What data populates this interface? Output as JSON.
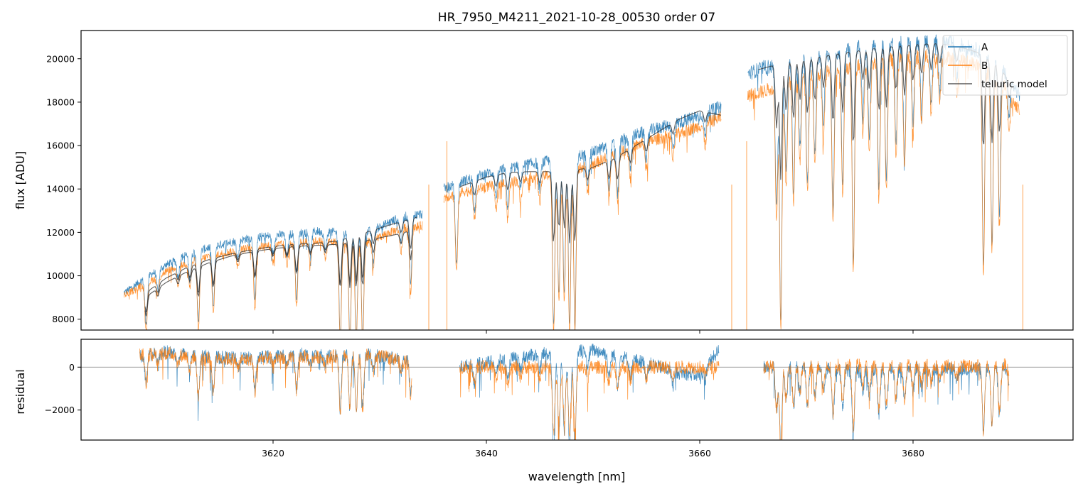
{
  "chart_data": {
    "type": "line",
    "title": "HR_7950_M4211_2021-10-28_00530  order 07",
    "xlabel": "wavelength [nm]",
    "xlim": [
      3602,
      3695
    ],
    "xticks": [
      3620,
      3640,
      3660,
      3680
    ],
    "colors": {
      "A": "#1f77b4",
      "B": "#ff7f0e",
      "model": "#333333",
      "zero": "#808080"
    },
    "legend": {
      "position": "top-right",
      "entries": [
        "A",
        "B",
        "telluric model"
      ]
    },
    "panels": {
      "flux": {
        "ylabel": "flux [ADU]",
        "ylim": [
          7500,
          21300
        ],
        "yticks": [
          8000,
          10000,
          12000,
          14000,
          16000,
          18000,
          20000
        ],
        "series": [
          {
            "name": "A",
            "segments": [
              {
                "x": [
                  3606.0,
                  3608.0,
                  3610.0,
                  3612.0,
                  3614.0,
                  3616.0,
                  3618.0,
                  3620.0,
                  3622.0,
                  3624.0,
                  3626.0,
                  3628.0,
                  3630.0,
                  3632.0,
                  3634.0
                ],
                "y": [
                  9200,
                  9900,
                  10500,
                  11000,
                  11300,
                  11550,
                  11750,
                  11850,
                  11950,
                  12050,
                  12000,
                  11850,
                  12250,
                  12700,
                  12850
                ]
              },
              {
                "x": [
                  3636.0,
                  3638.0,
                  3640.0,
                  3642.0,
                  3644.0,
                  3646.0,
                  3648.0,
                  3650.0,
                  3652.0,
                  3654.0,
                  3656.0,
                  3658.0,
                  3660.0,
                  3662.0
                ],
                "y": [
                  14000,
                  14400,
                  14700,
                  14950,
                  15150,
                  15300,
                  15450,
                  15700,
                  16100,
                  16500,
                  16800,
                  17050,
                  17400,
                  17800
                ]
              },
              {
                "x": [
                  3664.5,
                  3666.0,
                  3668.0,
                  3670.0,
                  3672.0,
                  3674.0,
                  3676.0,
                  3678.0,
                  3680.0,
                  3682.0,
                  3684.0,
                  3686.0,
                  3688.0,
                  3690.0
                ],
                "y": [
                  19300,
                  19600,
                  19700,
                  20000,
                  20200,
                  20400,
                  20600,
                  20700,
                  20800,
                  20800,
                  20700,
                  20400,
                  19800,
                  18300
                ]
              }
            ]
          },
          {
            "name": "B",
            "segments": [
              {
                "x": [
                  3606.0,
                  3608.0,
                  3610.0,
                  3612.0,
                  3614.0,
                  3616.0,
                  3618.0,
                  3620.0,
                  3622.0,
                  3624.0,
                  3626.0,
                  3628.0,
                  3630.0,
                  3632.0,
                  3634.0
                ],
                "y": [
                  9100,
                  9600,
                  10200,
                  10600,
                  10900,
                  11100,
                  11300,
                  11400,
                  11500,
                  11600,
                  11550,
                  11400,
                  11800,
                  12200,
                  12300
                ]
              },
              {
                "x": [
                  3636.0,
                  3638.0,
                  3640.0,
                  3642.0,
                  3644.0,
                  3646.0,
                  3648.0,
                  3650.0,
                  3652.0,
                  3654.0,
                  3656.0,
                  3658.0,
                  3660.0,
                  3662.0
                ],
                "y": [
                  13600,
                  13900,
                  14100,
                  14300,
                  14500,
                  14650,
                  14850,
                  15150,
                  15600,
                  16000,
                  16300,
                  16550,
                  16900,
                  17300
                ]
              },
              {
                "x": [
                  3664.5,
                  3666.0,
                  3668.0,
                  3670.0,
                  3672.0,
                  3674.0,
                  3676.0,
                  3678.0,
                  3680.0,
                  3682.0,
                  3684.0,
                  3686.0,
                  3688.0,
                  3690.0
                ],
                "y": [
                  18300,
                  18500,
                  18900,
                  19200,
                  19400,
                  19600,
                  19800,
                  19950,
                  20100,
                  20100,
                  20000,
                  19700,
                  19100,
                  17600
                ]
              }
            ]
          },
          {
            "name": "telluric model",
            "segments": [
              {
                "x": [
                  3608.0,
                  3610.0,
                  3612.0,
                  3614.0,
                  3616.0,
                  3618.0,
                  3620.0,
                  3622.0,
                  3624.0,
                  3626.0,
                  3628.0,
                  3630.0,
                  3632.0,
                  3633.5
                ],
                "y": [
                  9200,
                  9900,
                  10400,
                  10750,
                  11000,
                  11200,
                  11350,
                  11450,
                  11500,
                  11600,
                  11900,
                  12200,
                  12500,
                  12700
                ]
              },
              {
                "x": [
                  3608.0,
                  3610.0,
                  3612.0,
                  3614.0,
                  3616.0,
                  3618.0,
                  3620.0,
                  3622.0,
                  3624.0,
                  3626.0,
                  3628.0,
                  3630.0,
                  3632.0,
                  3633.0
                ],
                "y": [
                  9000,
                  9700,
                  10200,
                  10600,
                  10900,
                  11100,
                  11250,
                  11350,
                  11400,
                  11450,
                  11550,
                  11750,
                  11950,
                  12100
                ]
              },
              {
                "x": [
                  3637.5,
                  3640.0,
                  3642.0,
                  3644.0,
                  3646.0,
                  3648.0,
                  3650.0,
                  3652.0,
                  3654.0,
                  3656.0,
                  3658.0,
                  3660.0,
                  3662.0
                ],
                "y": [
                  14100,
                  14550,
                  14750,
                  14800,
                  14800,
                  14850,
                  15000,
                  15400,
                  16000,
                  16600,
                  17200,
                  17600,
                  17400
                ]
              },
              {
                "x": [
                  3665.5,
                  3667.0,
                  3668.0,
                  3670.0,
                  3672.0,
                  3674.0,
                  3676.0,
                  3678.0,
                  3680.0,
                  3682.0,
                  3684.0,
                  3686.0,
                  3688.0,
                  3689.5
                ],
                "y": [
                  19500,
                  19700,
                  19800,
                  19950,
                  20150,
                  20300,
                  20450,
                  20550,
                  20650,
                  20700,
                  20600,
                  20300,
                  19700,
                  18600
                ]
              }
            ]
          }
        ],
        "absorption_lines": [
          {
            "x": 3608.1,
            "depth": 0.22
          },
          {
            "x": 3609.2,
            "depth": 0.09
          },
          {
            "x": 3611.1,
            "depth": 0.08
          },
          {
            "x": 3612.2,
            "depth": 0.11
          },
          {
            "x": 3613.0,
            "depth": 0.3
          },
          {
            "x": 3614.4,
            "depth": 0.25
          },
          {
            "x": 3616.7,
            "depth": 0.07
          },
          {
            "x": 3618.3,
            "depth": 0.25
          },
          {
            "x": 3620.0,
            "depth": 0.07
          },
          {
            "x": 3621.3,
            "depth": 0.09
          },
          {
            "x": 3622.2,
            "depth": 0.25
          },
          {
            "x": 3623.5,
            "depth": 0.08
          },
          {
            "x": 3624.9,
            "depth": 0.07
          },
          {
            "x": 3626.3,
            "depth": 0.4
          },
          {
            "x": 3627.2,
            "depth": 0.4
          },
          {
            "x": 3627.8,
            "depth": 0.4
          },
          {
            "x": 3628.4,
            "depth": 0.4
          },
          {
            "x": 3629.4,
            "depth": 0.12
          },
          {
            "x": 3632.0,
            "depth": 0.09
          },
          {
            "x": 3632.9,
            "depth": 0.25
          },
          {
            "x": 3637.2,
            "depth": 0.26
          },
          {
            "x": 3638.9,
            "depth": 0.1
          },
          {
            "x": 3640.9,
            "depth": 0.08
          },
          {
            "x": 3642.0,
            "depth": 0.12
          },
          {
            "x": 3643.2,
            "depth": 0.07
          },
          {
            "x": 3645.0,
            "depth": 0.08
          },
          {
            "x": 3646.3,
            "depth": 0.5
          },
          {
            "x": 3646.8,
            "depth": 0.4
          },
          {
            "x": 3647.3,
            "depth": 0.4
          },
          {
            "x": 3647.8,
            "depth": 0.5
          },
          {
            "x": 3648.3,
            "depth": 0.5
          },
          {
            "x": 3649.5,
            "depth": 0.08
          },
          {
            "x": 3651.5,
            "depth": 0.12
          },
          {
            "x": 3652.3,
            "depth": 0.15
          },
          {
            "x": 3653.5,
            "depth": 0.09
          },
          {
            "x": 3655.0,
            "depth": 0.08
          },
          {
            "x": 3657.5,
            "depth": 0.07
          },
          {
            "x": 3660.5,
            "depth": 0.06
          },
          {
            "x": 3667.2,
            "depth": 0.33
          },
          {
            "x": 3667.6,
            "depth": 0.6
          },
          {
            "x": 3668.1,
            "depth": 0.25
          },
          {
            "x": 3668.8,
            "depth": 0.3
          },
          {
            "x": 3669.4,
            "depth": 0.2
          },
          {
            "x": 3670.1,
            "depth": 0.28
          },
          {
            "x": 3670.8,
            "depth": 0.22
          },
          {
            "x": 3671.6,
            "depth": 0.16
          },
          {
            "x": 3672.5,
            "depth": 0.35
          },
          {
            "x": 3673.4,
            "depth": 0.3
          },
          {
            "x": 3674.4,
            "depth": 0.48
          },
          {
            "x": 3675.3,
            "depth": 0.15
          },
          {
            "x": 3675.9,
            "depth": 0.2
          },
          {
            "x": 3676.8,
            "depth": 0.32
          },
          {
            "x": 3677.5,
            "depth": 0.3
          },
          {
            "x": 3678.4,
            "depth": 0.22
          },
          {
            "x": 3679.2,
            "depth": 0.25
          },
          {
            "x": 3680.0,
            "depth": 0.18
          },
          {
            "x": 3680.8,
            "depth": 0.15
          },
          {
            "x": 3681.7,
            "depth": 0.13
          },
          {
            "x": 3682.5,
            "depth": 0.1
          },
          {
            "x": 3684.1,
            "depth": 0.08
          },
          {
            "x": 3686.6,
            "depth": 0.48
          },
          {
            "x": 3687.4,
            "depth": 0.42
          },
          {
            "x": 3688.1,
            "depth": 0.35
          },
          {
            "x": 3689.0,
            "depth": 0.09
          }
        ],
        "gaps": [
          3634.6,
          3636.3,
          3663.0,
          3664.4,
          3690.3
        ]
      },
      "residual": {
        "ylabel": "residual",
        "ylim": [
          -3400,
          1300
        ],
        "yticks": [
          -2000,
          0
        ],
        "zero_line": 0,
        "series": [
          {
            "name": "A",
            "segments": [
              {
                "x": [
                  3607.5,
                  3610.0,
                  3612.5,
                  3615.0,
                  3617.5,
                  3620.0,
                  3622.5,
                  3625.0,
                  3627.5,
                  3630.0,
                  3633.0
                ],
                "y": [
                  500,
                  700,
                  550,
                  450,
                  400,
                  500,
                  600,
                  500,
                  650,
                  500,
                  300
                ]
              },
              {
                "x": [
                  3637.5,
                  3640.0,
                  3642.5,
                  3645.0,
                  3647.5,
                  3650.0,
                  3652.5,
                  3655.0,
                  3657.5,
                  3660.0,
                  3661.8
                ],
                "y": [
                  0,
                  200,
                  400,
                  600,
                  700,
                  800,
                  500,
                  200,
                  -200,
                  -400,
                  800
                ]
              },
              {
                "x": [
                  3666.0,
                  3670.0,
                  3675.0,
                  3680.0,
                  3685.0,
                  3689.0
                ],
                "y": [
                  0,
                  50,
                  -200,
                  0,
                  -100,
                  0
                ]
              }
            ]
          },
          {
            "name": "B",
            "segments": [
              {
                "x": [
                  3607.5,
                  3610.0,
                  3612.5,
                  3615.0,
                  3617.5,
                  3620.0,
                  3622.5,
                  3625.0,
                  3627.5,
                  3630.0,
                  3633.0
                ],
                "y": [
                  600,
                  650,
                  500,
                  400,
                  350,
                  450,
                  500,
                  450,
                  600,
                  500,
                  250
                ]
              },
              {
                "x": [
                  3637.5,
                  3640.0,
                  3642.5,
                  3645.0,
                  3647.5,
                  3650.0,
                  3652.5,
                  3655.0,
                  3657.5,
                  3660.0,
                  3661.8
                ],
                "y": [
                  0,
                  0,
                  0,
                  0,
                  0,
                  0,
                  0,
                  0,
                  0,
                  0,
                  0
                ]
              },
              {
                "x": [
                  3666.0,
                  3670.0,
                  3675.0,
                  3680.0,
                  3685.0,
                  3689.0
                ],
                "y": [
                  0,
                  50,
                  100,
                  100,
                  50,
                  100
                ]
              }
            ]
          }
        ]
      }
    }
  }
}
